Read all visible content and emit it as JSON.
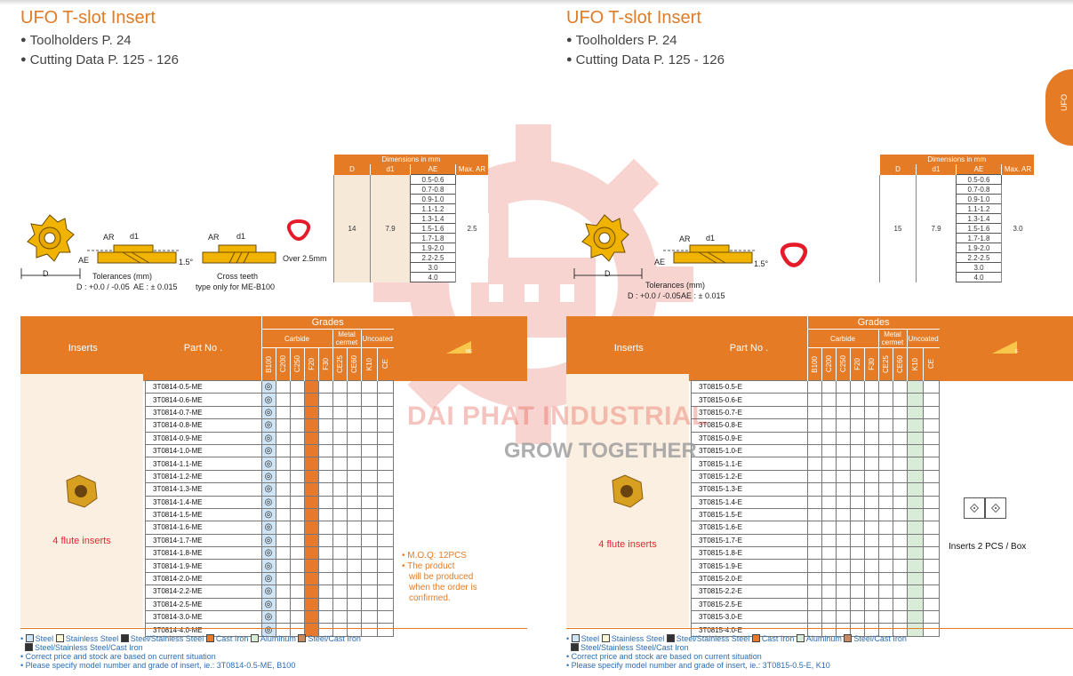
{
  "left": {
    "title": "UFO T-slot Insert",
    "bullets": [
      "Toolholders P. 24",
      "Cutting Data P. 125 - 126"
    ],
    "drawing": {
      "ar": "AR",
      "d1": "d1",
      "ae": "AE",
      "d": "D",
      "angle": "1.5°",
      "tol_title": "Tolerances (mm)",
      "tol_d": "D : +0.0 / -0.05",
      "tol_ae": "AE : ± 0.015",
      "cross_teeth": "Cross teeth",
      "cross_note": "type only for ME-B100",
      "over": "Over 2.5mm"
    },
    "dim": {
      "header": "Dimensions in mm",
      "cols": [
        "D",
        "d1",
        "AE",
        "Max. AR"
      ],
      "D": "14",
      "d1": "7.9",
      "max_ar": "2.5",
      "ae": [
        "0.5-0.6",
        "0.7-0.8",
        "0.9-1.0",
        "1.1-1.2",
        "1.3-1.4",
        "1.5-1.6",
        "1.7-1.8",
        "1.9-2.0",
        "2.2-2.5",
        "3.0",
        "4.0"
      ]
    },
    "table": {
      "inserts": "Inserts",
      "part_no": "Part No .",
      "grades": "Grades",
      "carbide": "Carbide",
      "metal_cermet": "Metal cermet",
      "uncoated": "Uncoated",
      "grade_cols": [
        "B100",
        "C200",
        "C250",
        "F20",
        "F30",
        "CE25",
        "CE60",
        "K10",
        "CE"
      ],
      "insert_label": "4 flute inserts",
      "mark": "◎",
      "parts": [
        "3T0814-0.5-ME",
        "3T0814-0.6-ME",
        "3T0814-0.7-ME",
        "3T0814-0.8-ME",
        "3T0814-0.9-ME",
        "3T0814-1.0-ME",
        "3T0814-1.1-ME",
        "3T0814-1.2-ME",
        "3T0814-1.3-ME",
        "3T0814-1.4-ME",
        "3T0814-1.5-ME",
        "3T0814-1.6-ME",
        "3T0814-1.7-ME",
        "3T0814-1.8-ME",
        "3T0814-1.9-ME",
        "3T0814-2.0-ME",
        "3T0814-2.2-ME",
        "3T0814-2.5-ME",
        "3T0814-3.0-ME",
        "3T0814-4.0-ME"
      ],
      "moq": [
        "• M.O.Q: 12PCS",
        "• The product",
        "will be produced",
        "when the order is",
        "confirmed."
      ]
    },
    "footer": {
      "legend": [
        "Steel",
        "Stainless Steel",
        "Steel/Stainless Steel",
        "Cast Iron",
        "Aluminum",
        "Steel/Cast Iron"
      ],
      "legend2": "Steel/Stainless Steel/Cast Iron",
      "note1": "• Correct price and stock are based on current situation",
      "note2": "• Please specify model number and grade of insert, ie.: 3T0814-0.5-ME, B100"
    }
  },
  "right": {
    "title": "UFO T-slot Insert",
    "bullets": [
      "Toolholders P. 24",
      "Cutting Data P. 125 - 126"
    ],
    "drawing": {
      "ar": "AR",
      "d1": "d1",
      "ae": "AE",
      "d": "D",
      "angle": "1.5°",
      "tol_title": "Tolerances (mm)",
      "tol_d": "D : +0.0 / -0.05",
      "tol_ae": "AE : ± 0.015"
    },
    "dim": {
      "header": "Dimensions in mm",
      "cols": [
        "D",
        "d1",
        "AE",
        "Max. AR"
      ],
      "D": "15",
      "d1": "7.9",
      "max_ar": "3.0",
      "ae": [
        "0.5-0.6",
        "0.7-0.8",
        "0.9-1.0",
        "1.1-1.2",
        "1.3-1.4",
        "1.5-1.6",
        "1.7-1.8",
        "1.9-2.0",
        "2.2-2.5",
        "3.0",
        "4.0"
      ]
    },
    "table": {
      "inserts": "Inserts",
      "part_no": "Part No .",
      "grades": "Grades",
      "carbide": "Carbide",
      "metal_cermet": "Metal cermet",
      "uncoated": "Uncoated",
      "grade_cols": [
        "B100",
        "C200",
        "C250",
        "F20",
        "F30",
        "CE25",
        "CE60",
        "K10",
        "CE"
      ],
      "insert_label": "4 flute inserts",
      "parts": [
        "3T0815-0.5-E",
        "3T0815-0.6-E",
        "3T0815-0.7-E",
        "3T0815-0.8-E",
        "3T0815-0.9-E",
        "3T0815-1.0-E",
        "3T0815-1.1-E",
        "3T0815-1.2-E",
        "3T0815-1.3-E",
        "3T0815-1.4-E",
        "3T0815-1.5-E",
        "3T0815-1.6-E",
        "3T0815-1.7-E",
        "3T0815-1.8-E",
        "3T0815-1.9-E",
        "3T0815-2.0-E",
        "3T0815-2.2-E",
        "3T0815-2.5-E",
        "3T0815-3.0-E",
        "3T0815-4.0-E"
      ],
      "box_label": "Inserts 2 PCS / Box"
    },
    "footer": {
      "legend": [
        "Steel",
        "Stainless Steel",
        "Steel/Stainless Steel",
        "Cast Iron",
        "Aluminum",
        "Steel/Cast Iron"
      ],
      "legend2": "Steel/Stainless Steel/Cast Iron",
      "note1": "• Correct price and stock are based on current situation",
      "note2": "• Please specify model number and grade of insert, ie.: 3T0815-0.5-E, K10"
    }
  },
  "side_tab": "UFO",
  "watermark": {
    "line1": "DAI PHAT INDUSTRIAL",
    "line2": "GROW TOGETHER"
  },
  "colors": {
    "accent": "#e57b25",
    "steel": "#cfe4f4",
    "cast_iron": "#e8782a",
    "aluminum": "#d8ecd8"
  }
}
